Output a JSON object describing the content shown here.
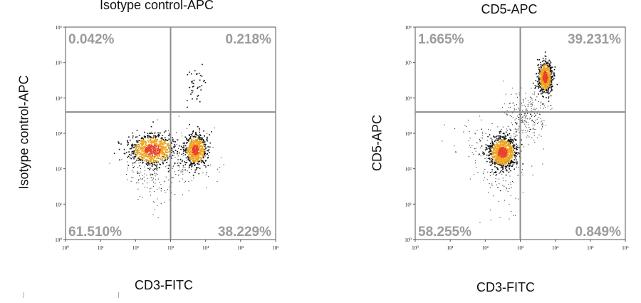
{
  "chart_data": [
    {
      "type": "scatter",
      "title": "Isotype control-APC",
      "xlabel": "CD3-FITC",
      "ylabel": "Isotype control-APC",
      "x_scale": "log",
      "y_scale": "log",
      "xlim": [
        1,
        1000000
      ],
      "ylim": [
        1,
        1000000
      ],
      "x_ticks": [
        "10⁰",
        "10¹",
        "10²",
        "10³",
        "10⁴",
        "10⁵",
        "10⁶"
      ],
      "y_ticks": [
        "10⁰",
        "10¹",
        "10²",
        "10³",
        "10⁴",
        "10⁵",
        "10⁶"
      ],
      "gate": {
        "x": 1000,
        "y": 4000
      },
      "quadrants": {
        "upper_left": "0.042%",
        "upper_right": "0.218%",
        "lower_left": "61.510%",
        "lower_right": "38.229%"
      },
      "populations": [
        {
          "center_x": 300,
          "center_y": 350
        },
        {
          "center_x": 5000,
          "center_y": 350
        },
        {
          "center_x": 5000,
          "center_y": 25000
        }
      ],
      "colors": {
        "dense": "#e8412a",
        "mid": "#f4a21c",
        "sparse": "#111111",
        "gate": "#8c8c8c"
      }
    },
    {
      "type": "scatter",
      "title": "CD5-APC",
      "xlabel": "CD3-FITC",
      "ylabel": "CD5-APC",
      "x_scale": "log",
      "y_scale": "log",
      "xlim": [
        1,
        1000000
      ],
      "ylim": [
        1,
        1000000
      ],
      "x_ticks": [
        "10⁰",
        "10¹",
        "10²",
        "10³",
        "10⁴",
        "10⁵",
        "10⁶"
      ],
      "y_ticks": [
        "10⁰",
        "10¹",
        "10²",
        "10³",
        "10⁴",
        "10⁵",
        "10⁶"
      ],
      "gate": {
        "x": 1000,
        "y": 4000
      },
      "quadrants": {
        "upper_left": "1.665%",
        "upper_right": "39.231%",
        "lower_left": "58.255%",
        "lower_right": "0.849%"
      },
      "populations": [
        {
          "center_x": 300,
          "center_y": 300
        },
        {
          "center_x": 5000,
          "center_y": 40000
        }
      ],
      "colors": {
        "dense": "#e8412a",
        "mid": "#f4a21c",
        "sparse": "#111111",
        "gate": "#8c8c8c"
      }
    }
  ]
}
